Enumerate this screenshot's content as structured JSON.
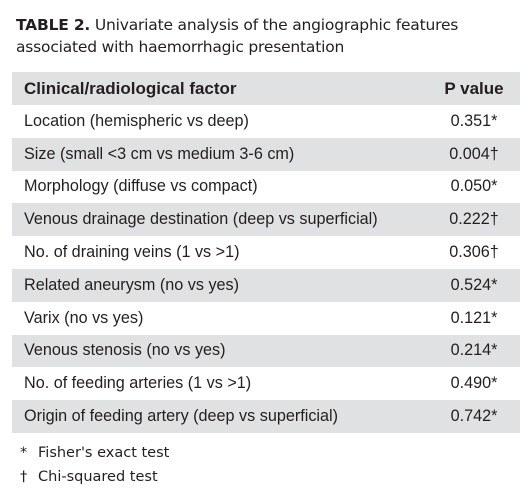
{
  "caption": {
    "number": "TABLE 2.",
    "text": "Univariate analysis of the angiographic features associated with haemorrhagic presentation"
  },
  "table": {
    "headers": [
      "Clinical/radiological factor",
      "P value"
    ],
    "rows": [
      {
        "factor": "Location (hemispheric vs deep)",
        "p": "0.351*"
      },
      {
        "factor": "Size (small <3 cm vs medium 3-6 cm)",
        "p": "0.004†"
      },
      {
        "factor": "Morphology (diffuse vs compact)",
        "p": "0.050*"
      },
      {
        "factor": "Venous drainage destination (deep vs superficial)",
        "p": "0.222†"
      },
      {
        "factor": "No. of draining veins (1 vs >1)",
        "p": "0.306†"
      },
      {
        "factor": "Related aneurysm (no vs yes)",
        "p": "0.524*"
      },
      {
        "factor": "Varix (no vs yes)",
        "p": "0.121*"
      },
      {
        "factor": "Venous stenosis (no vs yes)",
        "p": "0.214*"
      },
      {
        "factor": "No. of feeding arteries (1 vs >1)",
        "p": "0.490*"
      },
      {
        "factor": "Origin of feeding artery (deep vs superficial)",
        "p": "0.742*"
      }
    ]
  },
  "footnotes": [
    {
      "symbol": "*",
      "text": "Fisher's exact test"
    },
    {
      "symbol": "†",
      "text": "Chi-squared test"
    }
  ],
  "colors": {
    "stripe": "#e0e1e2",
    "text": "#231f20"
  }
}
